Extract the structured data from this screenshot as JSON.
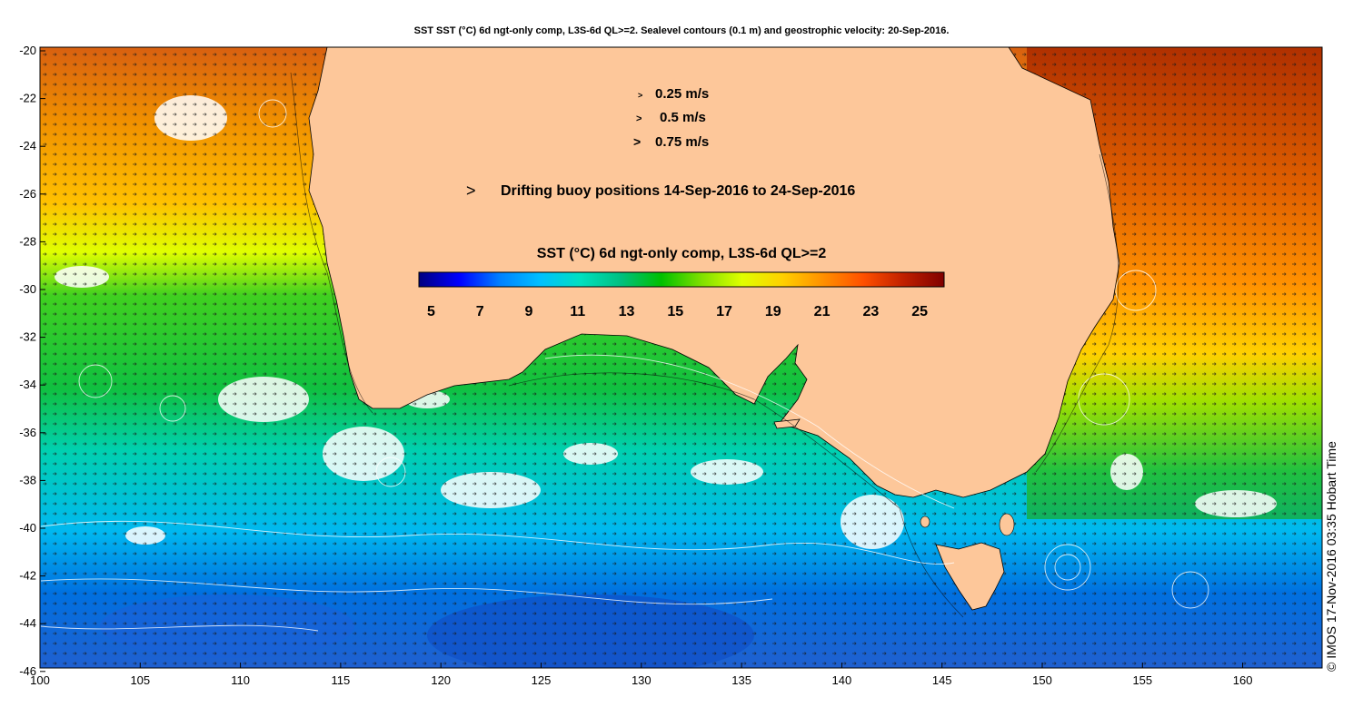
{
  "title": "SST SST (°C) 6d ngt-only comp, L3S-6d QL>=2. Sealevel contours (0.1 m) and geostrophic velocity: 20-Sep-2016.",
  "axes": {
    "lat_ticks": [
      "-20",
      "-22",
      "-24",
      "-26",
      "-28",
      "-30",
      "-32",
      "-34",
      "-36",
      "-38",
      "-40",
      "-42",
      "-44",
      "-46"
    ],
    "lon_ticks": [
      "100",
      "105",
      "110",
      "115",
      "120",
      "125",
      "130",
      "135",
      "140",
      "145",
      "150",
      "155",
      "160"
    ]
  },
  "velocity_legend": [
    {
      "arrow": ">",
      "label": "0.25 m/s"
    },
    {
      "arrow": ">",
      "label": "0.5 m/s"
    },
    {
      "arrow": ">",
      "label": "0.75 m/s"
    }
  ],
  "buoy_legend": {
    "arrow": ">",
    "label": "Drifting buoy positions 14-Sep-2016 to 24-Sep-2016",
    "color": "#ff00ff"
  },
  "colorbar": {
    "title": "SST (°C) 6d ngt-only comp, L3S-6d QL>=2",
    "ticks": [
      "5",
      "7",
      "9",
      "11",
      "13",
      "15",
      "17",
      "19",
      "21",
      "23",
      "25"
    ],
    "min": 4.5,
    "max": 26,
    "stops": [
      "#00007f",
      "#0000ff",
      "#0080ff",
      "#00c0ff",
      "#00e0c0",
      "#00c080",
      "#00c000",
      "#80e000",
      "#e0ff00",
      "#ffd000",
      "#ff9000",
      "#ff5000",
      "#c02000",
      "#800000"
    ]
  },
  "credit": "© IMOS 17-Nov-2016 03:35 Hobart Time",
  "colors": {
    "land": "#fdc79a",
    "coast": "#000000",
    "contour": "#ffffff"
  }
}
